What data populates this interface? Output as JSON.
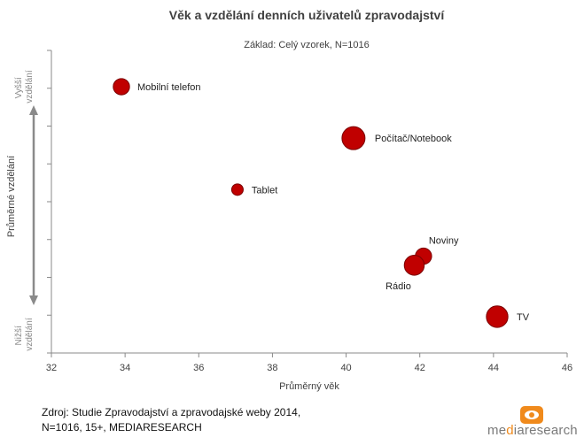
{
  "chart_data": {
    "type": "scatter",
    "title": "Věk a vzdělání denních uživatelů zpravodajství",
    "subtitle": "Základ: Celý vzorek, N=1016",
    "xlabel": "Průměrný věk",
    "ylabel": "Průměrné vzdělání",
    "xlim": [
      32,
      46
    ],
    "xticks": [
      "32",
      "34",
      "36",
      "38",
      "40",
      "42",
      "44",
      "46"
    ],
    "y_top_label": "Vyšší vzdělání",
    "y_bottom_label": "Nižší vzdělání",
    "grid": false,
    "points": [
      {
        "name": "Mobilní telefon",
        "x": 33.9,
        "y": 0.88,
        "size": 2
      },
      {
        "name": "Počítač/Notebook",
        "x": 40.2,
        "y": 0.71,
        "size": 4
      },
      {
        "name": "Tablet",
        "x": 37.05,
        "y": 0.54,
        "size": 1
      },
      {
        "name": "Noviny",
        "x": 42.1,
        "y": 0.32,
        "size": 2
      },
      {
        "name": "Rádio",
        "x": 41.85,
        "y": 0.29,
        "size": 3
      },
      {
        "name": "TV",
        "x": 44.1,
        "y": 0.12,
        "size": 3.5
      }
    ],
    "point_color": "#c00000"
  },
  "source": {
    "line1": "Zdroj:  Studie Zpravodajství a zpravodajské weby 2014,",
    "line2": "N=1016, 15+,  MEDIARESEARCH"
  },
  "logo": {
    "prefix": "me",
    "accent": "d",
    "suffix": "iaresearch"
  }
}
